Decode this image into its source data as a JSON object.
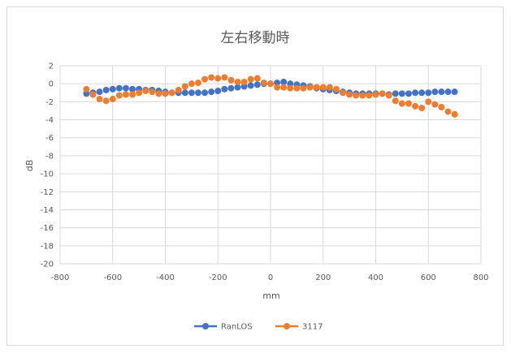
{
  "chart_data": {
    "type": "scatter",
    "title": "左右移動時",
    "xlabel": "mm",
    "ylabel": "dB",
    "xlim": [
      -800,
      800
    ],
    "ylim": [
      -20,
      2
    ],
    "xticks": [
      -800,
      -600,
      -400,
      -200,
      0,
      200,
      400,
      600,
      800
    ],
    "yticks": [
      2,
      0,
      -2,
      -4,
      -6,
      -8,
      -10,
      -12,
      -14,
      -16,
      -18,
      -20
    ],
    "grid": true,
    "legend_position": "bottom",
    "series": [
      {
        "name": "RanLOS",
        "color": "#4472c4",
        "x": [
          -700,
          -675,
          -650,
          -625,
          -600,
          -575,
          -550,
          -525,
          -500,
          -475,
          -450,
          -425,
          -400,
          -375,
          -350,
          -325,
          -300,
          -275,
          -250,
          -225,
          -200,
          -175,
          -150,
          -125,
          -100,
          -75,
          -50,
          -25,
          0,
          25,
          50,
          75,
          100,
          125,
          150,
          175,
          200,
          225,
          250,
          275,
          300,
          325,
          350,
          375,
          400,
          425,
          450,
          475,
          500,
          525,
          550,
          575,
          600,
          625,
          650,
          675,
          700
        ],
        "y": [
          -1.1,
          -1.0,
          -0.9,
          -0.7,
          -0.6,
          -0.5,
          -0.5,
          -0.6,
          -0.6,
          -0.7,
          -0.7,
          -0.8,
          -0.9,
          -1.0,
          -1.0,
          -1.0,
          -1.0,
          -1.0,
          -1.0,
          -0.9,
          -0.8,
          -0.6,
          -0.5,
          -0.4,
          -0.3,
          -0.2,
          -0.1,
          0.0,
          0.0,
          0.1,
          0.2,
          0.0,
          -0.1,
          -0.2,
          -0.3,
          -0.5,
          -0.6,
          -0.7,
          -0.8,
          -0.9,
          -1.0,
          -1.1,
          -1.1,
          -1.1,
          -1.1,
          -1.1,
          -1.2,
          -1.1,
          -1.1,
          -1.1,
          -1.0,
          -1.0,
          -1.0,
          -0.9,
          -0.9,
          -0.9,
          -0.9
        ]
      },
      {
        "name": "3117",
        "color": "#ed7d31",
        "x": [
          -700,
          -675,
          -650,
          -625,
          -600,
          -575,
          -550,
          -525,
          -500,
          -475,
          -450,
          -425,
          -400,
          -375,
          -350,
          -325,
          -300,
          -275,
          -250,
          -225,
          -200,
          -175,
          -150,
          -125,
          -100,
          -75,
          -50,
          -25,
          0,
          25,
          50,
          75,
          100,
          125,
          150,
          175,
          200,
          225,
          250,
          275,
          300,
          325,
          350,
          375,
          400,
          425,
          450,
          475,
          500,
          525,
          550,
          575,
          600,
          625,
          650,
          675,
          700
        ],
        "y": [
          -0.6,
          -1.2,
          -1.7,
          -1.9,
          -1.7,
          -1.3,
          -1.2,
          -1.2,
          -1.0,
          -0.8,
          -0.9,
          -1.1,
          -1.1,
          -1.0,
          -0.7,
          -0.3,
          0.0,
          0.1,
          0.5,
          0.7,
          0.6,
          0.7,
          0.4,
          0.2,
          0.2,
          0.5,
          0.6,
          0.1,
          0.0,
          -0.4,
          -0.4,
          -0.5,
          -0.5,
          -0.5,
          -0.4,
          -0.4,
          -0.4,
          -0.4,
          -0.6,
          -1.0,
          -1.2,
          -1.3,
          -1.3,
          -1.3,
          -1.2,
          -1.1,
          -1.3,
          -1.9,
          -2.2,
          -2.2,
          -2.5,
          -2.7,
          -2.0,
          -2.3,
          -2.6,
          -3.1,
          -3.4
        ]
      }
    ]
  }
}
